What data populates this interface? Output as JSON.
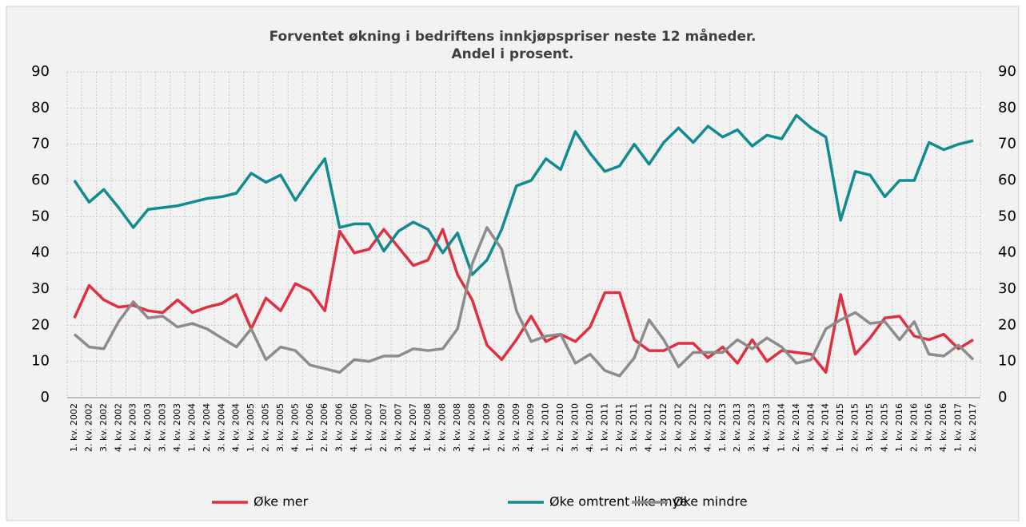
{
  "chart_data": {
    "type": "line",
    "title": [
      "Forventet økning i bedriftens innkjøpspriser neste 12 måneder.",
      "Andel i prosent."
    ],
    "categories": [
      "1. kv. 2002",
      "2. kv. 2002",
      "3. kv. 2002",
      "4. kv. 2002",
      "1. kv. 2003",
      "2. kv. 2003",
      "3. kv. 2003",
      "4. kv. 2003",
      "1. kv. 2004",
      "2. kv. 2004",
      "3. kv. 2004",
      "4. kv. 2004",
      "1. kv. 2005",
      "2. kv. 2005",
      "3. kv. 2005",
      "4. kv. 2005",
      "1. kv. 2006",
      "2. kv. 2006",
      "3. kv. 2006",
      "4. kv. 2006",
      "1. kv. 2007",
      "2. kv. 2007",
      "3. kv. 2007",
      "4. kv. 2007",
      "1. kv. 2008",
      "2. kv. 2008",
      "3. kv. 2008",
      "4. kv. 2008",
      "1. kv. 2009",
      "2. kv. 2009",
      "3. kv. 2009",
      "4. kv. 2009",
      "1. kv. 2010",
      "2. kv. 2010",
      "3. kv. 2010",
      "4. kv. 2010",
      "1. kv. 2011",
      "2. kv. 2011",
      "3. kv. 2011",
      "4. kv. 2011",
      "1. kv. 2012",
      "2. kv. 2012",
      "3. kv. 2012",
      "4. kv. 2012",
      "1. kv. 2013",
      "2. kv. 2013",
      "3. kv. 2013",
      "4. kv. 2013",
      "1. kv. 2014",
      "2. kv. 2014",
      "3. kv. 2014",
      "4. kv. 2014",
      "1. kv. 2015",
      "2. kv. 2015",
      "3. kv. 2015",
      "4. kv. 2015",
      "1. kv. 2016",
      "2. kv. 2016",
      "3. kv. 2016",
      "4. kv. 2016",
      "1. kv. 2017",
      "2. kv. 2017"
    ],
    "series": [
      {
        "name": "Øke mer",
        "color": "#e03040",
        "values": [
          22,
          31,
          27,
          25,
          25.5,
          24,
          23.5,
          27,
          23.5,
          25,
          26,
          28.5,
          19,
          27.5,
          24,
          31.5,
          29.5,
          24,
          46,
          40,
          41,
          46.5,
          41.5,
          36.5,
          38,
          46.5,
          34,
          27,
          14.5,
          10.5,
          16,
          22.5,
          15.5,
          17.5,
          15.5,
          19.5,
          29,
          29,
          16,
          13,
          13,
          15,
          15,
          11,
          14,
          9.5,
          16,
          10,
          13,
          12.5,
          12,
          7,
          28.5,
          12,
          16.5,
          22,
          22.5,
          17,
          16,
          17.5,
          13.5,
          16
        ]
      },
      {
        "name": "Øke omtrent like mye",
        "color": "#108b8f",
        "values": [
          60,
          54,
          57.5,
          52.5,
          47,
          52,
          52.5,
          53,
          54,
          55,
          55.5,
          56.5,
          62,
          59.5,
          61.5,
          54.5,
          60.5,
          66,
          47,
          48,
          48,
          40.5,
          46,
          48.5,
          46.5,
          40,
          45.5,
          34,
          38,
          46.5,
          58.5,
          60,
          66,
          63,
          73.5,
          67.5,
          62.5,
          64,
          70,
          64.5,
          70.5,
          74.5,
          70.5,
          75,
          72,
          74,
          69.5,
          72.5,
          71.5,
          78,
          74.5,
          72,
          49,
          62.5,
          61.5,
          55.5,
          60,
          60,
          70.5,
          68.5,
          70,
          71
        ]
      },
      {
        "name": "Øke mindre",
        "color": "#8c8c8c",
        "values": [
          17.5,
          14,
          13.5,
          21,
          26.5,
          22,
          22.5,
          19.5,
          20.5,
          19,
          16.5,
          14,
          19,
          10.5,
          14,
          13,
          9,
          8,
          7,
          10.5,
          10,
          11.5,
          11.5,
          13.5,
          13,
          13.5,
          19,
          37,
          47,
          41,
          24,
          15.5,
          17,
          17.5,
          9.5,
          12,
          7.5,
          6,
          11,
          21.5,
          16,
          8.5,
          12.5,
          12.5,
          12.5,
          16,
          13.5,
          16.5,
          14,
          9.5,
          10.5,
          19,
          21.5,
          23.5,
          20.5,
          21,
          16,
          21,
          12,
          11.5,
          14.5,
          10.5
        ]
      }
    ],
    "ylim": [
      0,
      90
    ],
    "yticks": [
      0,
      10,
      20,
      30,
      40,
      50,
      60,
      70,
      80,
      90
    ],
    "y2lim": [
      0,
      90
    ],
    "y2ticks": [
      0,
      10,
      20,
      30,
      40,
      50,
      60,
      70,
      80,
      90
    ],
    "grid": true,
    "legend": "bottom"
  }
}
